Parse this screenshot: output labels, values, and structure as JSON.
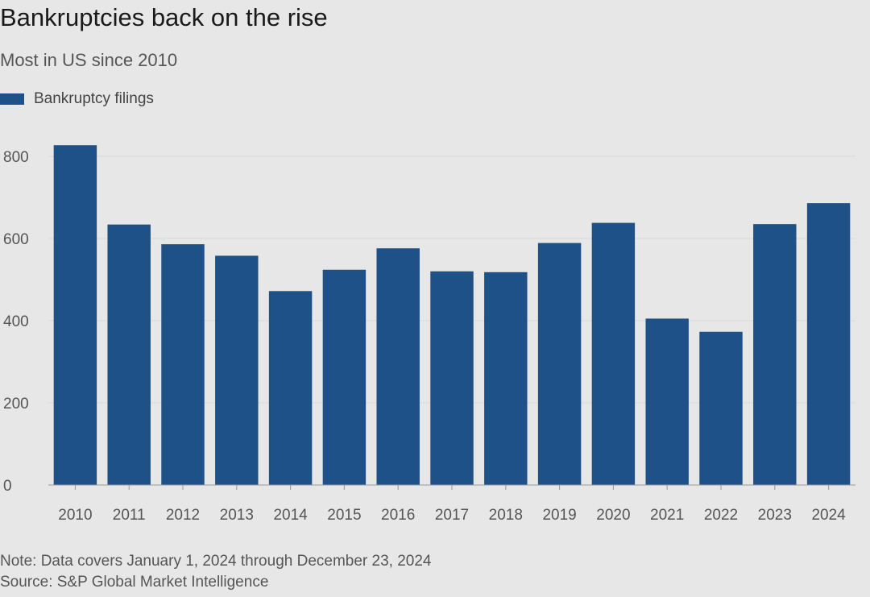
{
  "title": "Bankruptcies back on the rise",
  "subtitle": "Most in US since 2010",
  "legend": {
    "label": "Bankruptcy filings",
    "color": "#1f5189"
  },
  "footnotes": {
    "note": "Note: Data covers January 1, 2024 through December 23, 2024",
    "source": "Source: S&P Global Market Intelligence"
  },
  "chart_data": {
    "type": "bar",
    "title": "Bankruptcies back on the rise",
    "subtitle": "Most in US since 2010",
    "xlabel": "",
    "ylabel": "",
    "categories": [
      "2010",
      "2011",
      "2012",
      "2013",
      "2014",
      "2015",
      "2016",
      "2017",
      "2018",
      "2019",
      "2020",
      "2021",
      "2022",
      "2023",
      "2024"
    ],
    "series": [
      {
        "name": "Bankruptcy filings",
        "color": "#1f5189",
        "values": [
          827,
          634,
          586,
          558,
          472,
          524,
          576,
          520,
          518,
          589,
          638,
          405,
          373,
          635,
          686
        ]
      }
    ],
    "ylim": [
      0,
      800
    ],
    "yticks": [
      0,
      200,
      400,
      600,
      800
    ],
    "grid": true,
    "legend_position": "top-left"
  }
}
